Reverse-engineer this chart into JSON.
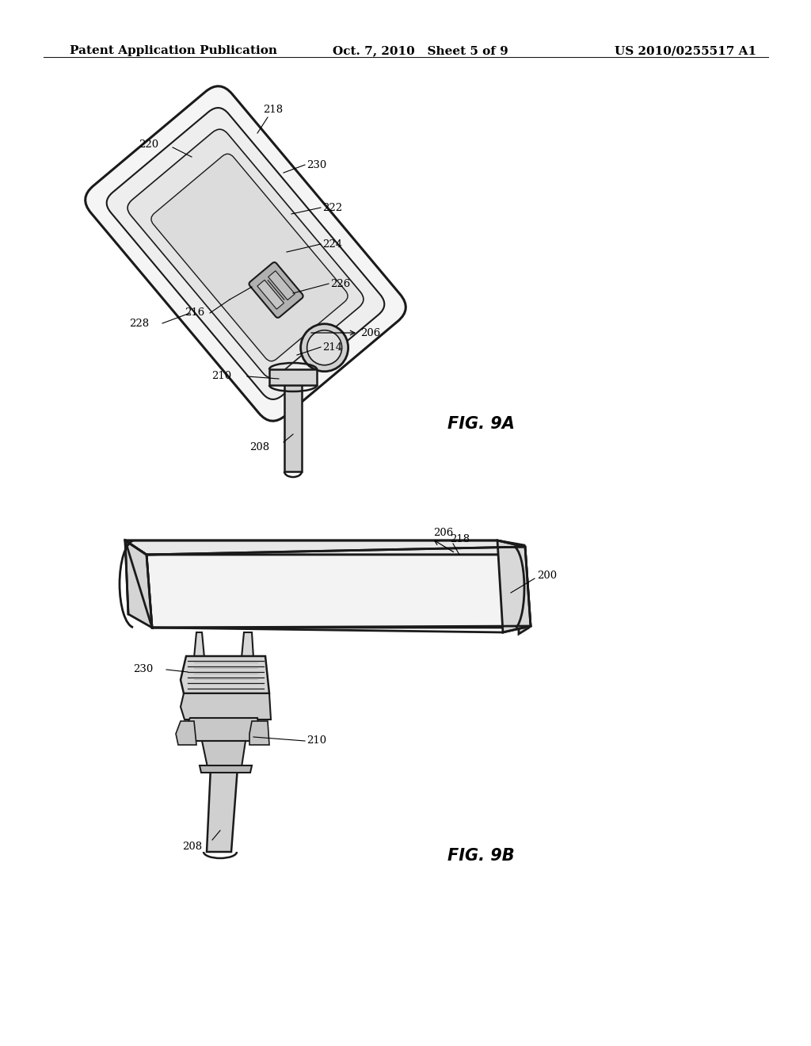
{
  "background_color": "#ffffff",
  "line_color": "#1a1a1a",
  "text_color": "#000000",
  "header_left": "Patent Application Publication",
  "header_center": "Oct. 7, 2010   Sheet 5 of 9",
  "header_right": "US 2010/0255517 A1",
  "fig9a_label": "FIG. 9A",
  "fig9b_label": "FIG. 9B",
  "header_fontsize": 11,
  "ann_fontsize": 9.5,
  "fig_label_fontsize": 15,
  "lw_outer": 2.2,
  "lw_inner": 1.5,
  "lw_thin": 0.9,
  "lw_ann": 0.8,
  "gray_outer": "#f5f5f5",
  "gray_mid": "#eeeeee",
  "gray_inner": "#e5e5e5",
  "gray_dark": "#c8c8c8",
  "gray_stem": "#d0d0d0"
}
